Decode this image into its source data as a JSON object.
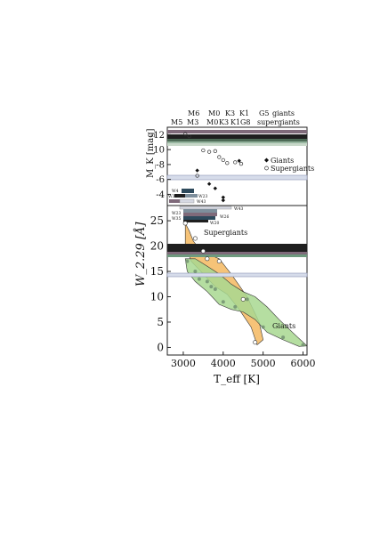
{
  "chart_data": [
    {
      "type": "scatter",
      "ylabel": "M_K [mag]",
      "top_labels": {
        "giants": {
          "types": [
            "M5",
            "M3",
            "M0",
            "K3",
            "K1",
            "G8"
          ],
          "label": "giants"
        },
        "supergiants": {
          "types": [
            "M6",
            "M3",
            "M0",
            "K3",
            "K1",
            "G5"
          ],
          "label": "supergiants"
        }
      },
      "ylim": [
        -13,
        -2.5
      ],
      "yticks": [
        "-12",
        "-10",
        "-8",
        "-6",
        "-4"
      ],
      "legend": {
        "placement": "right",
        "entries": [
          "Giants",
          "Supergiants"
        ]
      },
      "series": [
        {
          "name": "Giants",
          "marker": "filled-diamond",
          "points": [
            [
              3350,
              -7.2
            ],
            [
              3650,
              -5.4
            ],
            [
              3800,
              -4.8
            ],
            [
              4000,
              -3.6
            ],
            [
              4000,
              -3.2
            ],
            [
              4400,
              -8.5
            ]
          ]
        },
        {
          "name": "Supergiants",
          "marker": "open-circle",
          "points": [
            [
              3050,
              -12.1
            ],
            [
              3150,
              -11.8
            ],
            [
              3500,
              -9.9
            ],
            [
              3650,
              -9.7
            ],
            [
              3800,
              -9.8
            ],
            [
              3900,
              -9.0
            ],
            [
              4000,
              -8.6
            ],
            [
              4100,
              -8.2
            ],
            [
              4300,
              -8.3
            ],
            [
              4450,
              -8.1
            ],
            [
              3350,
              -6.5
            ]
          ]
        }
      ],
      "bars": {
        "labels": [
          "W23",
          "W4",
          "W35",
          "W43",
          "W43",
          "W4",
          "W23",
          "W35",
          "W20",
          "W26"
        ],
        "colors": [
          "#2e4a5c",
          "#6f5a6b",
          "#7e8f9c",
          "#9fb3c4",
          "#d6d9e3"
        ]
      }
    },
    {
      "type": "area",
      "xlabel": "T_eff [K]",
      "ylabel": "W_2.29 [Å]",
      "xlim": [
        2600,
        6100
      ],
      "ylim": [
        -1.5,
        28
      ],
      "xticks": [
        "3000",
        "4000",
        "5000",
        "6000"
      ],
      "yticks": [
        "0",
        "5",
        "10",
        "15",
        "20",
        "25"
      ],
      "regions": [
        {
          "name": "Supergiants",
          "color": "#f4b860"
        },
        {
          "name": "Giants",
          "color": "#a8d890"
        }
      ],
      "bar_labels": [
        "W23",
        "W35",
        "W26",
        "W20"
      ],
      "series": [
        {
          "name": "Supergiants",
          "marker": "open-circle",
          "points": [
            [
              3050,
              24.5
            ],
            [
              3300,
              21.5
            ],
            [
              3500,
              19.0
            ],
            [
              3600,
              17.5
            ],
            [
              3900,
              17.0
            ],
            [
              4500,
              9.5
            ],
            [
              4800,
              1.0
            ]
          ]
        },
        {
          "name": "Giants",
          "marker": "filled-circle",
          "points": [
            [
              3100,
              17.0
            ],
            [
              3300,
              15.0
            ],
            [
              3400,
              13.5
            ],
            [
              3600,
              13.0
            ],
            [
              3700,
              12.0
            ],
            [
              3800,
              11.5
            ],
            [
              4000,
              9.0
            ],
            [
              4300,
              8.0
            ],
            [
              4600,
              9.5
            ],
            [
              5000,
              4.0
            ],
            [
              5500,
              2.0
            ],
            [
              6000,
              0.5
            ]
          ]
        }
      ]
    }
  ]
}
